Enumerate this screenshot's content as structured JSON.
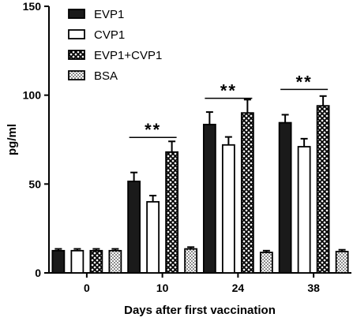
{
  "chart_data": {
    "type": "bar",
    "title": "",
    "xlabel": "Days after first vaccination",
    "ylabel": "pg/ml",
    "categories": [
      "0",
      "10",
      "24",
      "38"
    ],
    "ylim": [
      0,
      150
    ],
    "yticks": [
      0,
      50,
      100,
      150
    ],
    "grid": false,
    "legend": "top-left",
    "series": [
      {
        "name": "EVP1",
        "fill": "solid-black",
        "values": [
          12.5,
          51.5,
          83.5,
          84.5
        ],
        "errors": [
          1.0,
          5.0,
          7.0,
          4.5
        ]
      },
      {
        "name": "CVP1",
        "fill": "white",
        "values": [
          12.5,
          40.0,
          72.0,
          71.0
        ],
        "errors": [
          1.0,
          3.5,
          4.5,
          4.5
        ]
      },
      {
        "name": "EVP1+CVP1",
        "fill": "crosshatch",
        "values": [
          12.5,
          68.0,
          90.0,
          94.0
        ],
        "errors": [
          1.0,
          6.0,
          7.5,
          5.5
        ]
      },
      {
        "name": "BSA",
        "fill": "dotted",
        "values": [
          12.5,
          13.5,
          11.5,
          12.0
        ],
        "errors": [
          1.0,
          1.0,
          1.0,
          1.0
        ]
      }
    ],
    "annotations": [
      {
        "category": "10",
        "text": "**",
        "y": 78
      },
      {
        "category": "24",
        "text": "**",
        "y": 100
      },
      {
        "category": "38",
        "text": "**",
        "y": 105
      }
    ]
  }
}
